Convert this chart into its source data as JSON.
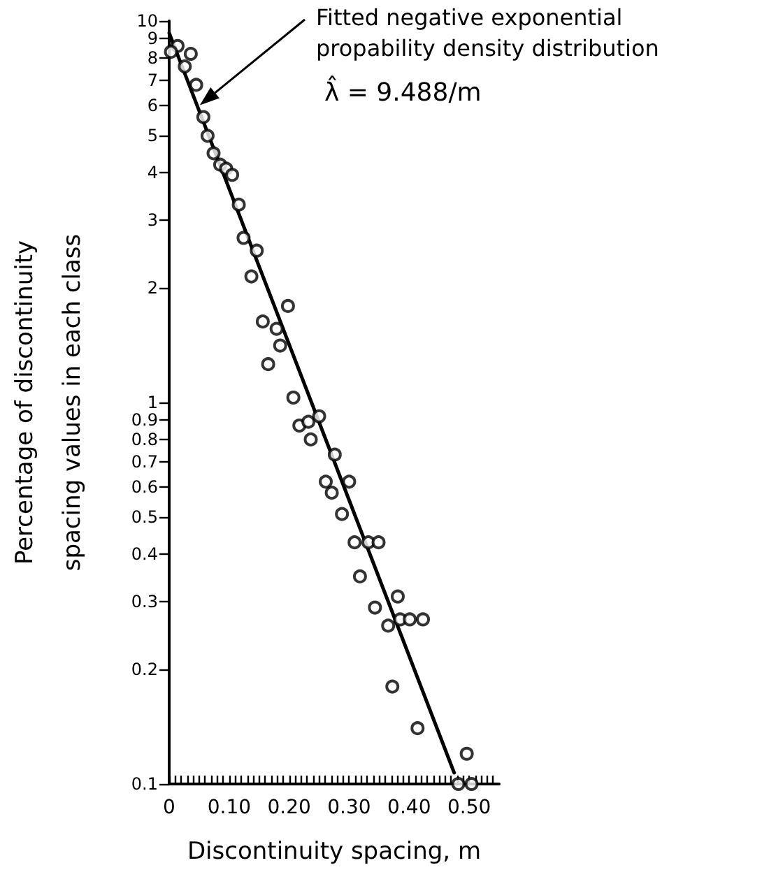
{
  "chart_data": {
    "type": "scatter",
    "xlabel": "Discontinuity spacing, m",
    "ylabel": "Percentage of discontinuity\nspacing values in each class",
    "annotations": [
      "Fitted negative exponential\npropability density distribution",
      "λ̂ = 9.488/m"
    ],
    "log": "y",
    "grid": false,
    "xlim": [
      0,
      0.55
    ],
    "xticks": [
      {
        "value": 0,
        "label": "0"
      },
      {
        "value": 0.01,
        "label": null
      },
      {
        "value": 0.02,
        "label": null
      },
      {
        "value": 0.03,
        "label": null
      },
      {
        "value": 0.04,
        "label": null
      },
      {
        "value": 0.05,
        "label": null
      },
      {
        "value": 0.06,
        "label": null
      },
      {
        "value": 0.07,
        "label": null
      },
      {
        "value": 0.08,
        "label": null
      },
      {
        "value": 0.09,
        "label": null
      },
      {
        "value": 0.1,
        "label": "0.10"
      },
      {
        "value": 0.11,
        "label": null
      },
      {
        "value": 0.12,
        "label": null
      },
      {
        "value": 0.13,
        "label": null
      },
      {
        "value": 0.14,
        "label": null
      },
      {
        "value": 0.15,
        "label": null
      },
      {
        "value": 0.16,
        "label": null
      },
      {
        "value": 0.17,
        "label": null
      },
      {
        "value": 0.18,
        "label": null
      },
      {
        "value": 0.19,
        "label": null
      },
      {
        "value": 0.2,
        "label": "0.20"
      },
      {
        "value": 0.21,
        "label": null
      },
      {
        "value": 0.22,
        "label": null
      },
      {
        "value": 0.23,
        "label": null
      },
      {
        "value": 0.24,
        "label": null
      },
      {
        "value": 0.25,
        "label": null
      },
      {
        "value": 0.26,
        "label": null
      },
      {
        "value": 0.27,
        "label": null
      },
      {
        "value": 0.28,
        "label": null
      },
      {
        "value": 0.29,
        "label": null
      },
      {
        "value": 0.3,
        "label": "0.30"
      },
      {
        "value": 0.31,
        "label": null
      },
      {
        "value": 0.32,
        "label": null
      },
      {
        "value": 0.33,
        "label": null
      },
      {
        "value": 0.34,
        "label": null
      },
      {
        "value": 0.35,
        "label": null
      },
      {
        "value": 0.36,
        "label": null
      },
      {
        "value": 0.37,
        "label": null
      },
      {
        "value": 0.38,
        "label": null
      },
      {
        "value": 0.39,
        "label": null
      },
      {
        "value": 0.4,
        "label": "0.40"
      },
      {
        "value": 0.41,
        "label": null
      },
      {
        "value": 0.42,
        "label": null
      },
      {
        "value": 0.43,
        "label": null
      },
      {
        "value": 0.44,
        "label": null
      },
      {
        "value": 0.45,
        "label": null
      },
      {
        "value": 0.46,
        "label": null
      },
      {
        "value": 0.47,
        "label": null
      },
      {
        "value": 0.48,
        "label": null
      },
      {
        "value": 0.49,
        "label": null
      },
      {
        "value": 0.5,
        "label": "0.50"
      },
      {
        "value": 0.51,
        "label": null
      },
      {
        "value": 0.52,
        "label": null
      },
      {
        "value": 0.53,
        "label": null
      },
      {
        "value": 0.54,
        "label": null
      }
    ],
    "ylim": [
      0.1,
      10
    ],
    "yticks": [
      0.1,
      0.2,
      0.3,
      0.4,
      0.5,
      0.6,
      0.7,
      0.8,
      0.9,
      1,
      2,
      3,
      4,
      5,
      6,
      7,
      8,
      9,
      10
    ],
    "series": [
      {
        "color": "#000000",
        "marker": "circle",
        "x": [
          0.014,
          0.003,
          0.036,
          0.026,
          0.045,
          0.057,
          0.064,
          0.074,
          0.085,
          0.095,
          0.105,
          0.116,
          0.124,
          0.146,
          0.137,
          0.198,
          0.156,
          0.179,
          0.185,
          0.165,
          0.207,
          0.217,
          0.232,
          0.25,
          0.236,
          0.276,
          0.261,
          0.3,
          0.271,
          0.288,
          0.309,
          0.332,
          0.349,
          0.318,
          0.343,
          0.381,
          0.365,
          0.385,
          0.401,
          0.423,
          0.372,
          0.414,
          0.496,
          0.482,
          0.504
        ],
        "values": [
          8.6,
          8.3,
          8.2,
          7.6,
          6.8,
          5.6,
          5.0,
          4.5,
          4.2,
          4.1,
          3.95,
          3.3,
          2.7,
          2.5,
          2.14,
          1.79,
          1.63,
          1.56,
          1.41,
          1.26,
          1.03,
          0.87,
          0.89,
          0.92,
          0.8,
          0.73,
          0.62,
          0.62,
          0.58,
          0.51,
          0.43,
          0.43,
          0.43,
          0.35,
          0.29,
          0.31,
          0.26,
          0.27,
          0.27,
          0.27,
          0.18,
          0.14,
          0.12,
          0.1,
          0.1
        ]
      },
      {
        "type": "line",
        "color": "#000000",
        "marker": "none",
        "line_style": "solid",
        "x": [
          0,
          0.475
        ],
        "values": [
          9.3,
          0.107
        ]
      }
    ]
  }
}
